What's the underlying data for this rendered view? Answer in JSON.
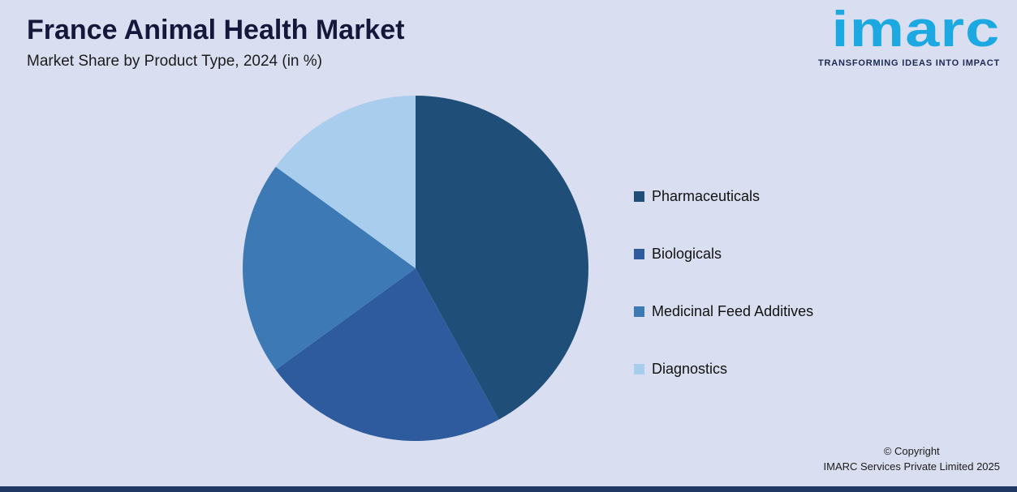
{
  "header": {
    "title": "France Animal Health Market",
    "subtitle": "Market Share by Product Type, 2024 (in %)"
  },
  "logo": {
    "text": "imarc",
    "tagline": "TRANSFORMING IDEAS INTO IMPACT",
    "color": "#1ca9e2",
    "tagline_color": "#1b2a52"
  },
  "chart_data": {
    "type": "pie",
    "title": "France Animal Health Market",
    "subtitle": "Market Share by Product Type, 2024 (in %)",
    "labels": [
      "Pharmaceuticals",
      "Biologicals",
      "Medicinal Feed Additives",
      "Diagnostics"
    ],
    "values": [
      42,
      23,
      20,
      15
    ],
    "colors": [
      "#1f4e79",
      "#2e5b9e",
      "#3d7ab5",
      "#a9cdec"
    ],
    "start_angle_deg": 0,
    "direction": "clockwise",
    "legend_position": "right",
    "data_labels": false
  },
  "legend": {
    "items": [
      {
        "label": "Pharmaceuticals",
        "color": "#1f4e79"
      },
      {
        "label": "Biologicals",
        "color": "#2e5b9e"
      },
      {
        "label": "Medicinal Feed Additives",
        "color": "#3d7ab5"
      },
      {
        "label": "Diagnostics",
        "color": "#a9cdec"
      }
    ]
  },
  "footer": {
    "copyright_line1": "© Copyright",
    "copyright_line2": "IMARC Services Private Limited 2025"
  },
  "colors": {
    "background": "#d9def0",
    "bottom_bar": "#1f3864",
    "title": "#15183a"
  }
}
